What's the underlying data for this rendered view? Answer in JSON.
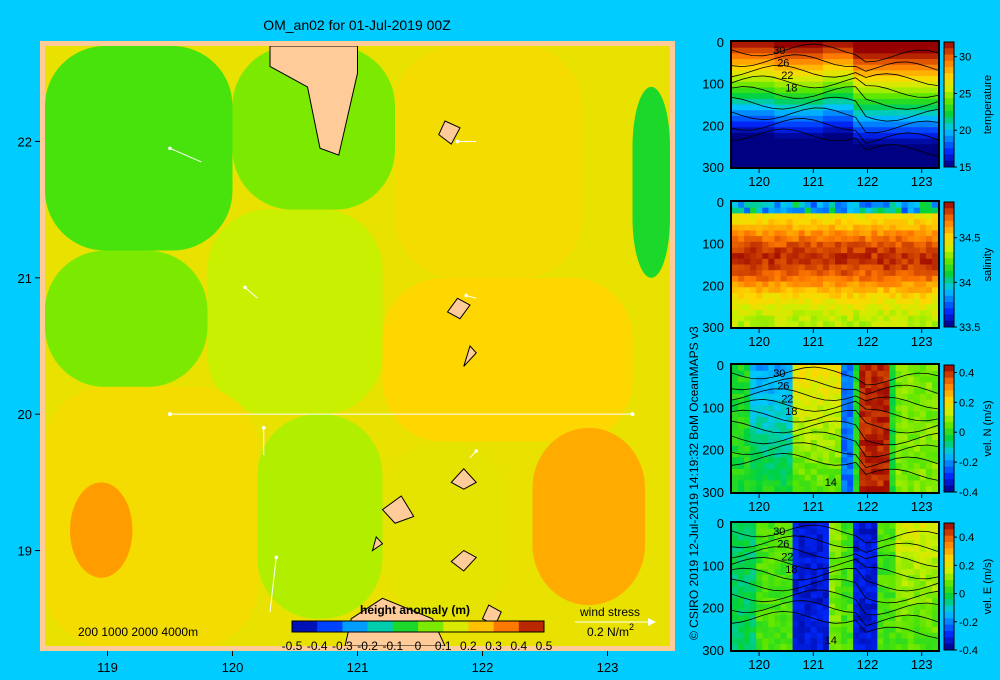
{
  "title": "OM_an02 for 01-Jul-2019 00Z",
  "credit": "© CSIRO 2019  12-Jul-2019 14:19:32 BoM OceanMAPS v3",
  "colors": {
    "background": "#00ccff",
    "land": "#ffcc99",
    "transect": "#ffffff"
  },
  "chart_data": [
    {
      "type": "heatmap",
      "title": "OM_an02 for 01-Jul-2019 00Z",
      "x_ticks": [
        "119",
        "120",
        "121",
        "122",
        "123"
      ],
      "y_ticks": [
        "22",
        "21",
        "20",
        "19"
      ],
      "xlim": [
        118.5,
        123.5
      ],
      "ylim": [
        18.3,
        22.7
      ],
      "depth_contours_label": "200  1000  2000  4000m",
      "colorbar": {
        "label": "height anomaly (m)",
        "range": [
          -0.5,
          0.5
        ],
        "ticks": [
          "-0.5",
          "-0.4",
          "-0.3",
          "-0.2",
          "-0.1",
          "0",
          "0.1",
          "0.2",
          "0.3",
          "0.4",
          "0.5"
        ]
      },
      "wind_stress": {
        "label": "wind stress",
        "scale_label": "0.2 N/m",
        "scale_exp": "2"
      },
      "transect": {
        "lat": 20,
        "lon_start": 119.5,
        "lon_end": 123.2
      },
      "field_regions": [
        {
          "lon": [
            118.5,
            120.0
          ],
          "lat": [
            21.2,
            22.7
          ],
          "value": 0.0
        },
        {
          "lon": [
            120.0,
            121.3
          ],
          "lat": [
            21.5,
            22.7
          ],
          "value": 0.05
        },
        {
          "lon": [
            121.3,
            122.8
          ],
          "lat": [
            21.0,
            22.7
          ],
          "value": 0.2
        },
        {
          "lon": [
            118.5,
            119.8
          ],
          "lat": [
            20.2,
            21.2
          ],
          "value": 0.05
        },
        {
          "lon": [
            119.8,
            121.2
          ],
          "lat": [
            20.0,
            21.5
          ],
          "value": 0.12
        },
        {
          "lon": [
            121.2,
            123.2
          ],
          "lat": [
            19.8,
            21.0
          ],
          "value": 0.22
        },
        {
          "lon": [
            118.5,
            120.2
          ],
          "lat": [
            18.3,
            20.2
          ],
          "value": 0.2
        },
        {
          "lon": [
            120.2,
            121.2
          ],
          "lat": [
            18.5,
            20.0
          ],
          "value": 0.1
        },
        {
          "lon": [
            121.2,
            122.2
          ],
          "lat": [
            18.5,
            19.8
          ],
          "value": 0.17
        },
        {
          "lon": [
            122.4,
            123.3
          ],
          "lat": [
            18.6,
            19.9
          ],
          "value": 0.28
        },
        {
          "lon": [
            118.7,
            119.2
          ],
          "lat": [
            18.8,
            19.5
          ],
          "value": 0.3
        },
        {
          "lon": [
            123.2,
            123.5
          ],
          "lat": [
            21.0,
            22.4
          ],
          "value": -0.05
        }
      ]
    },
    {
      "type": "heatmap",
      "variable": "temperature",
      "x_ticks": [
        "120",
        "121",
        "122",
        "123"
      ],
      "y_ticks": [
        "0",
        "100",
        "200",
        "300"
      ],
      "colorbar": {
        "label": "temperature",
        "range": [
          15,
          32
        ],
        "ticks": [
          "30",
          "25",
          "20",
          "15"
        ]
      },
      "contour_labels": [
        "30",
        "26",
        "22",
        "18"
      ]
    },
    {
      "type": "heatmap",
      "variable": "salinity",
      "x_ticks": [
        "120",
        "121",
        "122",
        "123"
      ],
      "y_ticks": [
        "0",
        "100",
        "200",
        "300"
      ],
      "colorbar": {
        "label": "salinity",
        "range": [
          33.5,
          34.9
        ],
        "ticks": [
          "34.5",
          "34",
          "33.5"
        ]
      }
    },
    {
      "type": "heatmap",
      "variable": "vel. N (m/s)",
      "x_ticks": [
        "120",
        "121",
        "122",
        "123"
      ],
      "y_ticks": [
        "0",
        "100",
        "200",
        "300"
      ],
      "colorbar": {
        "label": "vel. N  (m/s)",
        "range": [
          -0.4,
          0.45
        ],
        "ticks": [
          "0.4",
          "0.2",
          "0",
          "-0.2",
          "-0.4"
        ]
      },
      "contour_labels": [
        "30",
        "26",
        "22",
        "18",
        "14"
      ]
    },
    {
      "type": "heatmap",
      "variable": "vel. E (m/s)",
      "x_ticks": [
        "120",
        "121",
        "122",
        "123"
      ],
      "y_ticks": [
        "0",
        "100",
        "200",
        "300"
      ],
      "colorbar": {
        "label": "vel. E  (m/s)",
        "range": [
          -0.4,
          0.5
        ],
        "ticks": [
          "0.4",
          "0.2",
          "0",
          "-0.2",
          "-0.4"
        ]
      },
      "contour_labels": [
        "30",
        "26",
        "22",
        "18",
        "14"
      ]
    }
  ]
}
